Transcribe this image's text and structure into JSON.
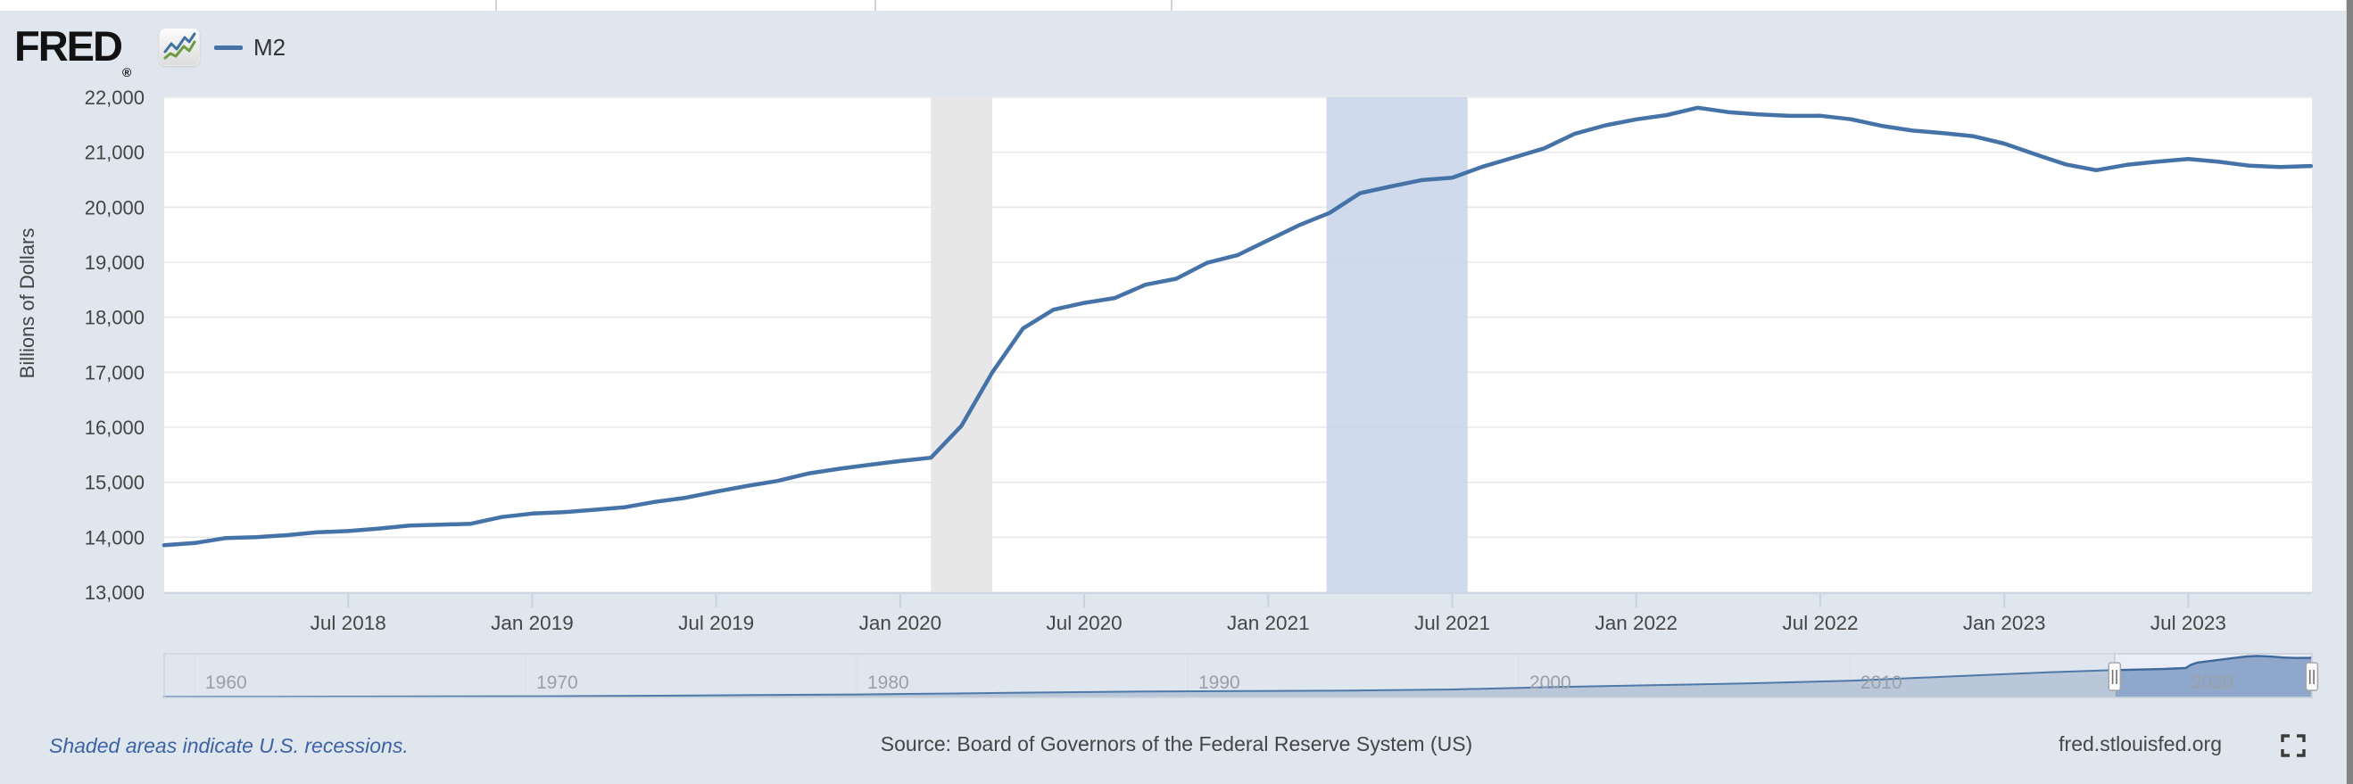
{
  "header": {
    "logo_text": "FRED",
    "registered_mark": "®",
    "legend": {
      "series_label": "M2",
      "swatch_color": "#4572a7"
    }
  },
  "chart_data": {
    "type": "line",
    "title": "M2",
    "ylabel": "Billions of Dollars",
    "ylim": [
      13000,
      22000
    ],
    "grid": "horizontal",
    "line_color": "#4572a7",
    "y_ticks": [
      {
        "value": 13000,
        "label": "13,000"
      },
      {
        "value": 14000,
        "label": "14,000"
      },
      {
        "value": 15000,
        "label": "15,000"
      },
      {
        "value": 16000,
        "label": "16,000"
      },
      {
        "value": 17000,
        "label": "17,000"
      },
      {
        "value": 18000,
        "label": "18,000"
      },
      {
        "value": 19000,
        "label": "19,000"
      },
      {
        "value": 20000,
        "label": "20,000"
      },
      {
        "value": 21000,
        "label": "21,000"
      },
      {
        "value": 22000,
        "label": "22,000"
      }
    ],
    "x_ticks": [
      {
        "label": "Jul 2018",
        "month_index": 6
      },
      {
        "label": "Jan 2019",
        "month_index": 12
      },
      {
        "label": "Jul 2019",
        "month_index": 18
      },
      {
        "label": "Jan 2020",
        "month_index": 24
      },
      {
        "label": "Jul 2020",
        "month_index": 30
      },
      {
        "label": "Jan 2021",
        "month_index": 36
      },
      {
        "label": "Jul 2021",
        "month_index": 42
      },
      {
        "label": "Jan 2022",
        "month_index": 48
      },
      {
        "label": "Jul 2022",
        "month_index": 54
      },
      {
        "label": "Jan 2023",
        "month_index": 60
      },
      {
        "label": "Jul 2023",
        "month_index": 66
      }
    ],
    "series": [
      {
        "name": "M2",
        "units": "Billions of Dollars",
        "frequency": "monthly",
        "start": "Jan 2018",
        "end": "Nov 2023",
        "values": [
          13855,
          13895,
          13984,
          14001,
          14038,
          14092,
          14112,
          14158,
          14212,
          14228,
          14245,
          14367,
          14430,
          14454,
          14498,
          14543,
          14642,
          14718,
          14829,
          14932,
          15023,
          15158,
          15245,
          15317,
          15386,
          15446,
          16027,
          16995,
          17795,
          18137,
          18260,
          18349,
          18592,
          18700,
          18989,
          19128,
          19400,
          19672,
          19896,
          20256,
          20378,
          20494,
          20538,
          20738,
          20903,
          21071,
          21337,
          21489,
          21598,
          21676,
          21809,
          21729,
          21688,
          21661,
          21662,
          21599,
          21479,
          21393,
          21348,
          21290,
          21156,
          20963,
          20779,
          20673,
          20771,
          20829,
          20876,
          20826,
          20754,
          20730,
          20750
        ]
      }
    ],
    "recession_band": {
      "from": "Feb 2020",
      "to": "Apr 2020",
      "from_index": 25,
      "to_index": 27,
      "color": "#e7e7e7"
    },
    "selection_band": {
      "from_index": 37.9,
      "to_index": 42.5,
      "color": "#c8d5eb"
    },
    "navigator": {
      "x_labels": [
        {
          "year": 1960,
          "label": "1960"
        },
        {
          "year": 1970,
          "label": "1970"
        },
        {
          "year": 1980,
          "label": "1980"
        },
        {
          "year": 1990,
          "label": "1990"
        },
        {
          "year": 2000,
          "label": "2000"
        },
        {
          "year": 2010,
          "label": "2010"
        },
        {
          "year": 2020,
          "label": "2020"
        }
      ],
      "range_years": [
        1959.05,
        2023.96
      ],
      "selected_years": [
        2018.0,
        2023.96
      ],
      "series": [
        [
          1959.05,
          287
        ],
        [
          1962,
          360
        ],
        [
          1965,
          459
        ],
        [
          1968,
          567
        ],
        [
          1971,
          633
        ],
        [
          1974,
          927
        ],
        [
          1977,
          1270
        ],
        [
          1980,
          1599
        ],
        [
          1983,
          2124
        ],
        [
          1986,
          2730
        ],
        [
          1989,
          3161
        ],
        [
          1992,
          3432
        ],
        [
          1995,
          3630
        ],
        [
          1998,
          4207
        ],
        [
          2001,
          5433
        ],
        [
          2004,
          6421
        ],
        [
          2007,
          7457
        ],
        [
          2010,
          8790
        ],
        [
          2013,
          10990
        ],
        [
          2016,
          13210
        ],
        [
          2018,
          14350
        ],
        [
          2019.5,
          15000
        ],
        [
          2020.15,
          15500
        ],
        [
          2020.3,
          17100
        ],
        [
          2020.5,
          18300
        ],
        [
          2021,
          19400
        ],
        [
          2021.5,
          20500
        ],
        [
          2022,
          21550
        ],
        [
          2022.3,
          21800
        ],
        [
          2022.7,
          21500
        ],
        [
          2023.1,
          20950
        ],
        [
          2023.45,
          20750
        ],
        [
          2023.96,
          20760
        ]
      ]
    }
  },
  "footer": {
    "note": "Shaded areas indicate U.S. recessions.",
    "source": "Source: Board of Governors of the Federal Reserve System (US)",
    "site": "fred.stlouisfed.org"
  }
}
